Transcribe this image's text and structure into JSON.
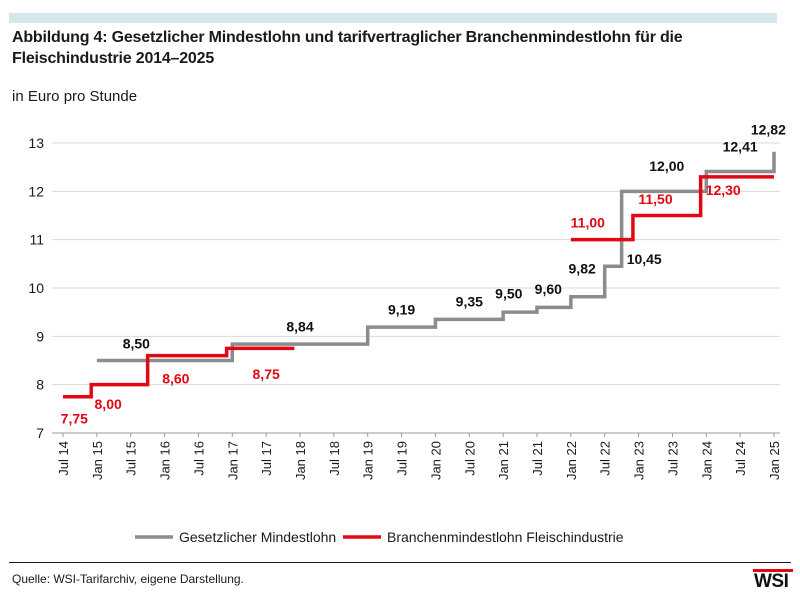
{
  "header": {
    "title": "Abbildung 4: Gesetzlicher Mindestlohn und tarifvertraglicher Branchenmindestlohn für die Fleischindustrie 2014–2025",
    "unit_label": "in Euro pro Stunde"
  },
  "footer": {
    "source": "Quelle: WSI-Tarifarchiv, eigene Darstellung.",
    "logo_text": "WSI"
  },
  "chart_data": {
    "type": "line",
    "line_shape": "step",
    "title": "Abbildung 4: Gesetzlicher Mindestlohn und tarifvertraglicher Branchenmindestlohn für die Fleischindustrie 2014–2025",
    "ylabel": "in Euro pro Stunde",
    "xlabel": "",
    "ylim": [
      7,
      13
    ],
    "yticks": [
      7,
      8,
      9,
      10,
      11,
      12,
      13
    ],
    "xlim": [
      "2014-07",
      "2025-01"
    ],
    "xticks": [
      "Jul 14",
      "Jan 15",
      "Jul 15",
      "Jan 16",
      "Jul 16",
      "Jan 17",
      "Jul 17",
      "Jan 18",
      "Jul 18",
      "Jan 19",
      "Jul 19",
      "Jan 20",
      "Jul 20",
      "Jan 21",
      "Jul 21",
      "Jan 22",
      "Jul 22",
      "Jan 23",
      "Jul 23",
      "Jan 24",
      "Jul 24",
      "Jan 25"
    ],
    "grid": "horizontal",
    "legend_position": "bottom",
    "series": [
      {
        "name": "Gesetzlicher Mindestlohn",
        "color": "#8c8c8c",
        "points": [
          {
            "x": "2015-01",
            "y": 8.5
          },
          {
            "x": "2017-01",
            "y": 8.84
          },
          {
            "x": "2019-01",
            "y": 9.19
          },
          {
            "x": "2020-01",
            "y": 9.35
          },
          {
            "x": "2021-01",
            "y": 9.5
          },
          {
            "x": "2021-07",
            "y": 9.6
          },
          {
            "x": "2022-01",
            "y": 9.82
          },
          {
            "x": "2022-07",
            "y": 10.45
          },
          {
            "x": "2022-10",
            "y": 12.0
          },
          {
            "x": "2024-01",
            "y": 12.41
          },
          {
            "x": "2025-01",
            "y": 12.82
          }
        ],
        "end": "2025-01"
      },
      {
        "name": "Branchenmindestlohn Fleischindustrie",
        "color": "#e30613",
        "segments": [
          {
            "points": [
              {
                "x": "2014-07",
                "y": 7.75
              },
              {
                "x": "2014-12",
                "y": 8.0
              },
              {
                "x": "2015-10",
                "y": 8.6
              },
              {
                "x": "2016-12",
                "y": 8.75
              }
            ],
            "end": "2017-12"
          },
          {
            "points": [
              {
                "x": "2022-01",
                "y": 11.0
              },
              {
                "x": "2022-12",
                "y": 11.5
              },
              {
                "x": "2023-12",
                "y": 12.3
              }
            ],
            "end": "2025-01"
          }
        ]
      }
    ],
    "annotations": [
      {
        "text": "8,50",
        "x": "2015-08",
        "y": 8.75,
        "series": 0
      },
      {
        "text": "8,84",
        "x": "2018-01",
        "y": 9.1,
        "series": 0
      },
      {
        "text": "9,19",
        "x": "2019-07",
        "y": 9.45,
        "series": 0
      },
      {
        "text": "9,35",
        "x": "2020-07",
        "y": 9.62,
        "series": 0
      },
      {
        "text": "9,50",
        "x": "2021-02",
        "y": 9.78,
        "series": 0
      },
      {
        "text": "9,60",
        "x": "2021-09",
        "y": 9.88,
        "series": 0
      },
      {
        "text": "9,82",
        "x": "2022-03",
        "y": 10.3,
        "series": 0
      },
      {
        "text": "10,45",
        "x": "2023-02",
        "y": 10.5,
        "series": 0
      },
      {
        "text": "12,00",
        "x": "2023-06",
        "y": 12.42,
        "series": 0
      },
      {
        "text": "12,41",
        "x": "2024-07",
        "y": 12.82,
        "series": 0
      },
      {
        "text": "12,82",
        "x": "2024-12",
        "y": 13.18,
        "series": 0
      },
      {
        "text": "7,75",
        "x": "2014-09",
        "y": 7.2,
        "series": 1
      },
      {
        "text": "8,00",
        "x": "2015-03",
        "y": 7.5,
        "series": 1
      },
      {
        "text": "8,60",
        "x": "2016-03",
        "y": 8.02,
        "series": 1
      },
      {
        "text": "8,75",
        "x": "2017-07",
        "y": 8.12,
        "series": 1
      },
      {
        "text": "11,00",
        "x": "2022-04",
        "y": 11.25,
        "series": 1
      },
      {
        "text": "11,50",
        "x": "2023-04",
        "y": 11.74,
        "series": 1
      },
      {
        "text": "12,30",
        "x": "2024-04",
        "y": 11.92,
        "series": 1
      }
    ]
  }
}
